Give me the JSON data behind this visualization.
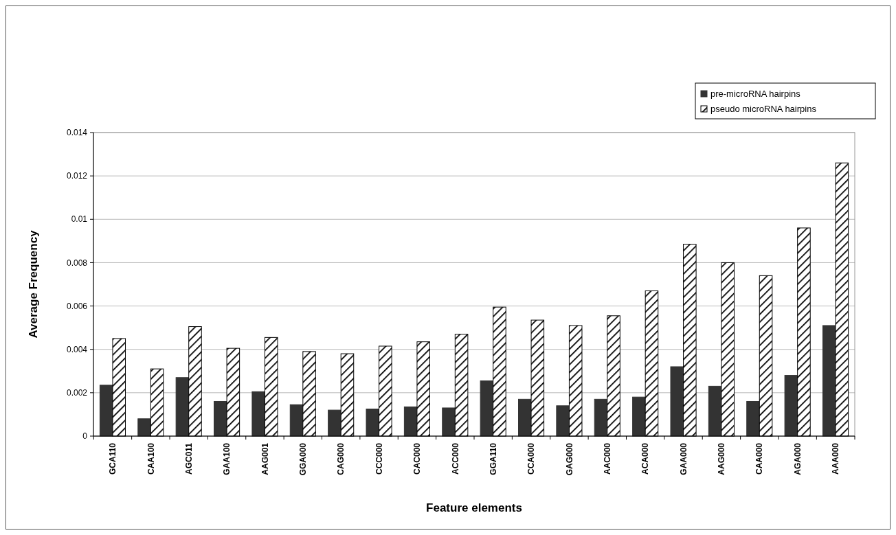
{
  "chart_data": {
    "type": "bar",
    "xlabel": "Feature elements",
    "ylabel": "Average Frequency",
    "categories": [
      "GCA110",
      "CAA100",
      "AGC011",
      "GAA100",
      "AAG001",
      "GGA000",
      "CAG000",
      "CCC000",
      "CAC000",
      "ACC000",
      "GGA110",
      "CCA000",
      "GAG000",
      "AAC000",
      "ACA000",
      "GAA000",
      "AAG000",
      "CAA000",
      "AGA000",
      "AAA000"
    ],
    "series": [
      {
        "name": "pre-microRNA hairpins",
        "color": "#333333",
        "values": [
          0.00235,
          0.0008,
          0.0027,
          0.0016,
          0.00205,
          0.00145,
          0.0012,
          0.00125,
          0.00135,
          0.0013,
          0.00255,
          0.0017,
          0.0014,
          0.0017,
          0.0018,
          0.0032,
          0.0023,
          0.0016,
          0.0028,
          0.0051
        ]
      },
      {
        "name": "pseudo microRNA hairpins",
        "color": "#000000",
        "values": [
          0.0045,
          0.0031,
          0.00505,
          0.00405,
          0.00455,
          0.0039,
          0.0038,
          0.00415,
          0.00435,
          0.0047,
          0.00595,
          0.00535,
          0.0051,
          0.00555,
          0.0067,
          0.00885,
          0.008,
          0.0074,
          0.0096,
          0.0126
        ]
      }
    ],
    "ylim": [
      0,
      0.014
    ],
    "yticks": [
      0,
      0.002,
      0.004,
      0.006,
      0.008,
      0.01,
      0.012,
      0.014
    ],
    "grid": "y",
    "legend": "top right"
  }
}
